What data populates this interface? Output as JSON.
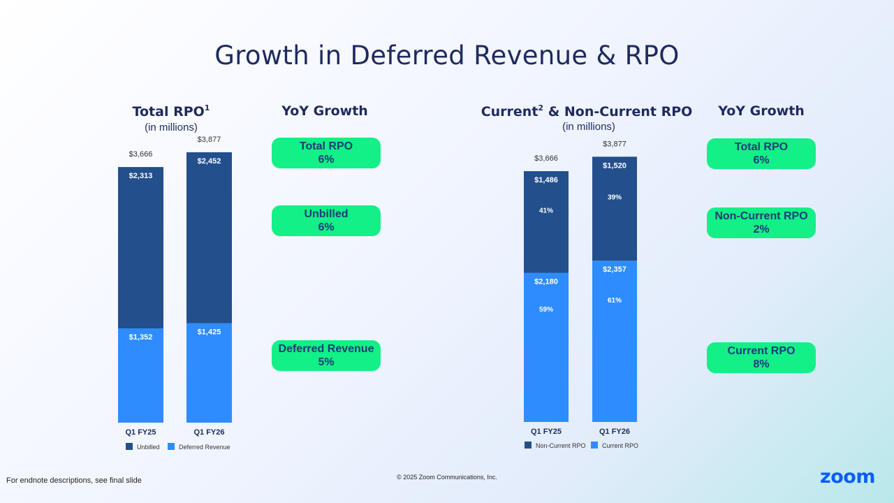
{
  "slide": {
    "title": "Growth in Deferred Revenue & RPO",
    "footnote": "For endnote descriptions, see final slide",
    "copyright": "© 2025 Zoom Communications, Inc.",
    "logo": "zoom"
  },
  "left": {
    "heading": "Total RPO",
    "heading_sup": "1",
    "subheading": "(in millions)",
    "yoy_heading": "YoY Growth",
    "pills": [
      {
        "label": "Total RPO",
        "value": "6%"
      },
      {
        "label": "Unbilled",
        "value": "6%"
      },
      {
        "label": "Deferred Revenue",
        "value": "5%"
      }
    ]
  },
  "right": {
    "heading_a": "Current",
    "heading_sup": "2",
    "heading_b": " & Non-Current RPO",
    "subheading": "(in millions)",
    "yoy_heading": "YoY Growth",
    "pills": [
      {
        "label": "Total RPO",
        "value": "6%"
      },
      {
        "label": "Non-Current RPO",
        "value": "2%"
      },
      {
        "label": "Current RPO",
        "value": "8%"
      }
    ]
  },
  "colors": {
    "dark": "#234f8c",
    "light": "#2e8cff",
    "pill": "#12f087"
  },
  "chart_data": [
    {
      "type": "bar",
      "stacked": true,
      "title": "Total RPO (in millions)",
      "categories": [
        "Q1 FY25",
        "Q1 FY26"
      ],
      "totals": [
        "$3,666",
        "$3,877"
      ],
      "total_values": [
        3666,
        3877
      ],
      "series": [
        {
          "name": "Deferred Revenue",
          "values": [
            1352,
            1425
          ],
          "labels": [
            "$1,352",
            "$1,425"
          ]
        },
        {
          "name": "Unbilled",
          "values": [
            2313,
            2452
          ],
          "labels": [
            "$2,313",
            "$2,452"
          ]
        }
      ],
      "legend": [
        "Unbilled",
        "Deferred Revenue"
      ]
    },
    {
      "type": "bar",
      "stacked": true,
      "title": "Current & Non-Current RPO (in millions)",
      "categories": [
        "Q1 FY25",
        "Q1 FY26"
      ],
      "totals": [
        "$3,666",
        "$3,877"
      ],
      "total_values": [
        3666,
        3877
      ],
      "series": [
        {
          "name": "Current RPO",
          "values": [
            2180,
            2357
          ],
          "labels": [
            "$2,180",
            "$2,357"
          ],
          "percents": [
            "59%",
            "61%"
          ]
        },
        {
          "name": "Non-Current RPO",
          "values": [
            1486,
            1520
          ],
          "labels": [
            "$1,486",
            "$1,520"
          ],
          "percents": [
            "41%",
            "39%"
          ]
        }
      ],
      "legend": [
        "Non-Current RPO",
        "Current RPO"
      ]
    }
  ]
}
